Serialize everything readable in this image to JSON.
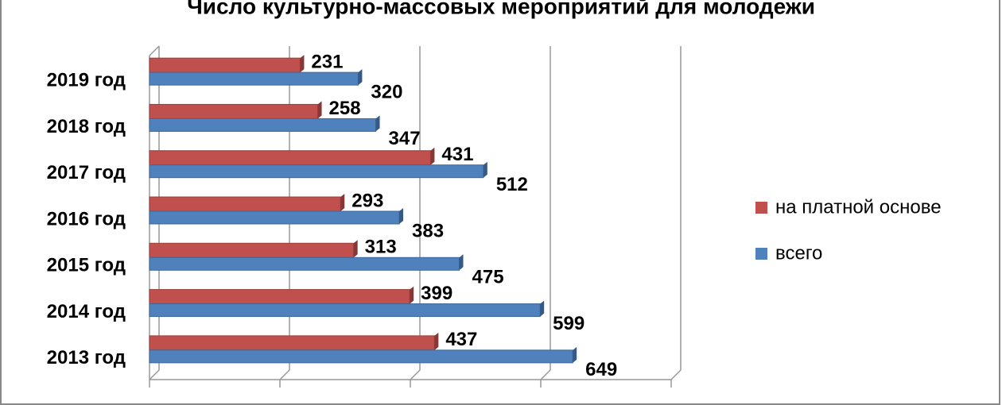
{
  "chart_data": {
    "type": "hbar",
    "title": "Число культурно-массовых мероприятий  для молодежи",
    "categories": [
      "2019 год",
      "2018 год",
      "2017 год",
      "2016 год",
      "2015 год",
      "2014 год",
      "2013 год"
    ],
    "series": [
      {
        "name": "на платной основе",
        "color": "#c0504d",
        "values": [
          231,
          258,
          431,
          293,
          313,
          399,
          437
        ]
      },
      {
        "name": "всего",
        "color": "#4f81bd",
        "values": [
          320,
          347,
          512,
          383,
          475,
          599,
          649
        ]
      }
    ],
    "xlim": [
      0,
      800
    ],
    "xticks": [
      0,
      200,
      400,
      600,
      800
    ],
    "grid": true,
    "legend": "right"
  }
}
